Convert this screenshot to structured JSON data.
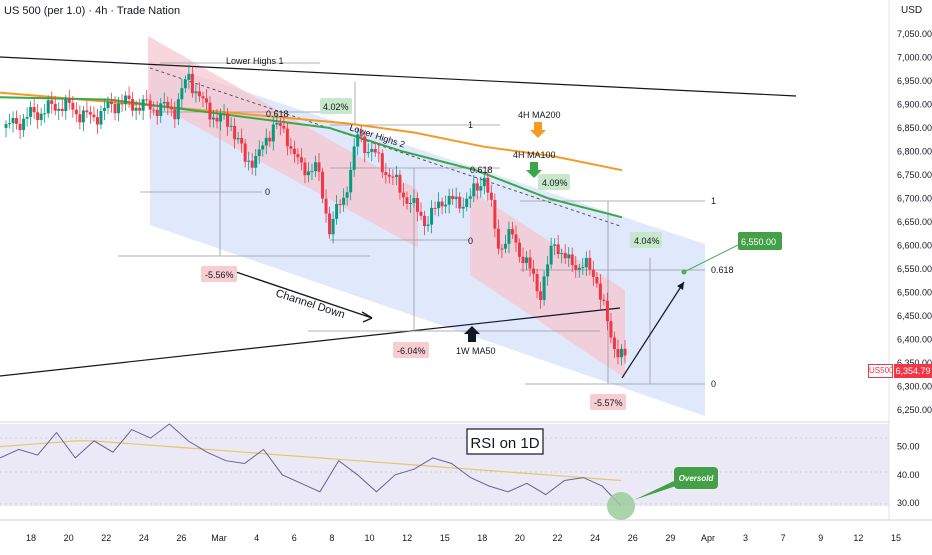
{
  "header": {
    "title": "US 500 (per 1.0) · 4h · Trade Nation",
    "currency": "USD"
  },
  "price_tag": {
    "symbol": "US500",
    "value": "6,354.79"
  },
  "colors": {
    "ma200": "#f59a23",
    "ma100": "#3aa84a",
    "bull_candle": "#089981",
    "bear_candle": "#f23645",
    "channel_fill": "#dbe4fb",
    "rsi_fill": "#ece9f7",
    "rsi_line": "#6b5e9c",
    "rsi_ma": "#e8c46a"
  },
  "chart_data": [
    {
      "type": "line",
      "title": "US 500 (per 1.0) · 4h · Trade Nation",
      "ylabel": "USD",
      "ylim": [
        6225,
        7075
      ],
      "y_ticks": [
        "7,050.00",
        "7,000.00",
        "6,950.00",
        "6,900.00",
        "6,850.00",
        "6,800.00",
        "6,750.00",
        "6,700.00",
        "6,650.00",
        "6,600.00",
        "6,550.00",
        "6,500.00",
        "6,450.00",
        "6,400.00",
        "6,350.00",
        "6,300.00",
        "6,250.00"
      ],
      "y_tick_values": [
        7050,
        7000,
        6950,
        6900,
        6850,
        6800,
        6750,
        6700,
        6650,
        6600,
        6550,
        6500,
        6450,
        6400,
        6350,
        6300,
        6250
      ],
      "x_ticks": [
        "18",
        "20",
        "22",
        "24",
        "26",
        "Mar",
        "4",
        "6",
        "8",
        "10",
        "12",
        "15",
        "18",
        "20",
        "22",
        "24",
        "26",
        "29",
        "Apr",
        "3",
        "7",
        "9",
        "12",
        "15"
      ],
      "series": [
        {
          "name": "Price",
          "points": [
            [
              0,
              6850
            ],
            [
              4,
              6880
            ],
            [
              8,
              6900
            ],
            [
              12,
              6870
            ],
            [
              16,
              6905
            ],
            [
              20,
              6895
            ],
            [
              24,
              6890
            ],
            [
              26,
              6960
            ],
            [
              28,
              6900
            ],
            [
              30,
              6870
            ],
            [
              32,
              6860
            ],
            [
              34,
              6780
            ],
            [
              36,
              6790
            ],
            [
              38,
              6860
            ],
            [
              40,
              6830
            ],
            [
              42,
              6760
            ],
            [
              44,
              6770
            ],
            [
              46,
              6640
            ],
            [
              48,
              6700
            ],
            [
              50,
              6830
            ],
            [
              52,
              6800
            ],
            [
              54,
              6760
            ],
            [
              56,
              6720
            ],
            [
              58,
              6680
            ],
            [
              60,
              6650
            ],
            [
              62,
              6700
            ],
            [
              64,
              6690
            ],
            [
              66,
              6700
            ],
            [
              68,
              6750
            ],
            [
              70,
              6600
            ],
            [
              72,
              6620
            ],
            [
              74,
              6560
            ],
            [
              76,
              6500
            ],
            [
              78,
              6610
            ],
            [
              80,
              6560
            ],
            [
              82,
              6560
            ],
            [
              84,
              6530
            ],
            [
              86,
              6400
            ],
            [
              88,
              6360
            ]
          ]
        },
        {
          "name": "4H MA200",
          "points": [
            [
              0,
              6925
            ],
            [
              20,
              6900
            ],
            [
              35,
              6880
            ],
            [
              50,
              6860
            ],
            [
              60,
              6840
            ],
            [
              70,
              6810
            ],
            [
              80,
              6790
            ],
            [
              90,
              6760
            ]
          ]
        },
        {
          "name": "4H MA100",
          "points": [
            [
              0,
              6915
            ],
            [
              15,
              6910
            ],
            [
              30,
              6880
            ],
            [
              45,
              6850
            ],
            [
              55,
              6800
            ],
            [
              65,
              6760
            ],
            [
              75,
              6700
            ],
            [
              85,
              6660
            ]
          ]
        }
      ],
      "annotations": [
        "Lower Highs 1",
        "Lower Highs 2",
        "4.02%",
        "4H MA200",
        "4H MA100",
        "0.618",
        "1",
        "0",
        "4.09%",
        "4.04%",
        "6,550.00",
        "-5.56%",
        "Channel Down",
        "-6.04%",
        "1W MA50",
        "-5.57%"
      ]
    },
    {
      "type": "line",
      "title": "RSI on 1D",
      "ylim": [
        24,
        58
      ],
      "y_ticks": [
        "50.00",
        "40.00",
        "30.00"
      ],
      "y_tick_values": [
        50,
        40,
        30
      ],
      "series": [
        {
          "name": "RSI",
          "values": [
            46,
            49,
            47,
            55,
            46,
            52,
            48,
            56,
            53,
            58,
            52,
            48,
            45,
            44,
            49,
            40,
            37,
            34,
            45,
            40,
            34,
            40,
            42,
            46,
            44,
            39,
            36,
            34,
            37,
            33,
            38,
            39,
            36,
            29
          ]
        },
        {
          "name": "RSI MA",
          "values": [
            50,
            50.5,
            51,
            51.5,
            52,
            52,
            51.5,
            51,
            50.5,
            50,
            49.5,
            49,
            48.5,
            48,
            47.5,
            47,
            46.5,
            46,
            45.5,
            45,
            44.5,
            44,
            43.5,
            43,
            42.5,
            42,
            41.5,
            41,
            40.5,
            40,
            39.5,
            39,
            38.5,
            38
          ]
        }
      ],
      "annotations": [
        "Oversold"
      ]
    }
  ]
}
